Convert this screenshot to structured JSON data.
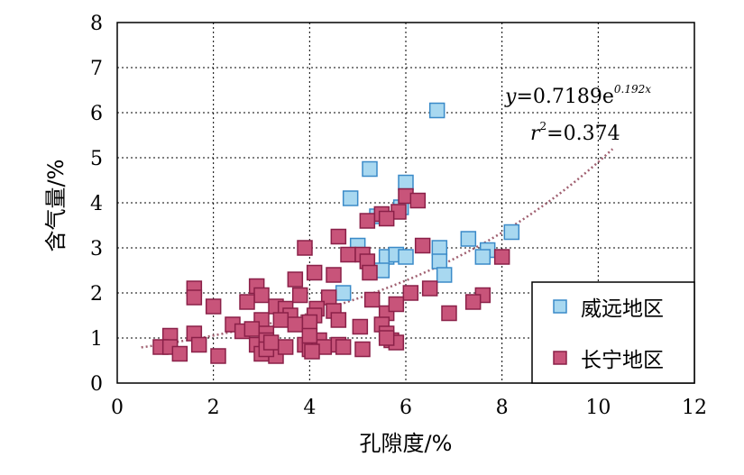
{
  "chart_data": {
    "type": "scatter",
    "xlabel": "孔隙度/%",
    "ylabel": "含气量/%",
    "xlim": [
      0,
      12
    ],
    "ylim": [
      0,
      8
    ],
    "xticks": [
      "0",
      "2",
      "4",
      "6",
      "8",
      "10",
      "12"
    ],
    "yticks": [
      "0",
      "1",
      "2",
      "3",
      "4",
      "5",
      "6",
      "7",
      "8"
    ],
    "grid": "dotted",
    "legend_position": "bottom-right",
    "equation": {
      "y_label": "y",
      "y_rhs": "=0.7189e",
      "y_exp": "0.192x",
      "r_label": "r",
      "r_sup": "2",
      "r_rhs": "=0.374"
    },
    "trendline": {
      "type": "exponential",
      "a": 0.7189,
      "b": 0.192,
      "x_range": [
        0.5,
        10.3
      ],
      "color": "#a06070"
    },
    "series": [
      {
        "name": "威远地区",
        "fill": "#a8d8f0",
        "stroke": "#3a8ac8",
        "points": [
          [
            6.65,
            6.05
          ],
          [
            5.25,
            4.75
          ],
          [
            6.0,
            4.45
          ],
          [
            4.85,
            4.1
          ],
          [
            5.9,
            3.9
          ],
          [
            5.4,
            3.7
          ],
          [
            5.0,
            3.05
          ],
          [
            6.7,
            3.0
          ],
          [
            7.3,
            3.2
          ],
          [
            8.2,
            3.35
          ],
          [
            7.7,
            2.95
          ],
          [
            7.6,
            2.8
          ],
          [
            5.6,
            2.8
          ],
          [
            5.8,
            2.85
          ],
          [
            6.0,
            2.8
          ],
          [
            6.7,
            2.7
          ],
          [
            6.8,
            2.4
          ],
          [
            5.5,
            2.5
          ],
          [
            4.7,
            2.0
          ]
        ]
      },
      {
        "name": "长宁地区",
        "fill": "#c8547a",
        "stroke": "#8a2048",
        "points": [
          [
            6.0,
            4.15
          ],
          [
            6.25,
            4.05
          ],
          [
            5.85,
            3.8
          ],
          [
            5.5,
            3.75
          ],
          [
            5.6,
            3.65
          ],
          [
            5.2,
            3.6
          ],
          [
            4.6,
            3.25
          ],
          [
            6.35,
            3.05
          ],
          [
            3.9,
            3.0
          ],
          [
            4.8,
            2.85
          ],
          [
            5.1,
            2.85
          ],
          [
            5.2,
            2.7
          ],
          [
            8.0,
            2.8
          ],
          [
            4.1,
            2.45
          ],
          [
            4.5,
            2.4
          ],
          [
            5.25,
            2.45
          ],
          [
            3.7,
            2.3
          ],
          [
            6.5,
            2.1
          ],
          [
            6.1,
            2.0
          ],
          [
            7.6,
            1.95
          ],
          [
            7.4,
            1.8
          ],
          [
            6.9,
            1.55
          ],
          [
            1.6,
            2.1
          ],
          [
            1.6,
            1.9
          ],
          [
            2.0,
            1.7
          ],
          [
            2.9,
            2.15
          ],
          [
            3.0,
            1.95
          ],
          [
            2.7,
            1.8
          ],
          [
            3.3,
            1.7
          ],
          [
            3.5,
            1.65
          ],
          [
            3.8,
            1.95
          ],
          [
            4.4,
            1.9
          ],
          [
            4.15,
            1.65
          ],
          [
            4.5,
            1.6
          ],
          [
            5.3,
            1.85
          ],
          [
            5.6,
            1.55
          ],
          [
            5.8,
            1.75
          ],
          [
            3.6,
            1.5
          ],
          [
            3.0,
            1.4
          ],
          [
            3.4,
            1.4
          ],
          [
            4.1,
            1.5
          ],
          [
            2.4,
            1.3
          ],
          [
            2.6,
            1.15
          ],
          [
            2.8,
            1.2
          ],
          [
            3.1,
            1.1
          ],
          [
            4.0,
            1.35
          ],
          [
            3.7,
            1.3
          ],
          [
            4.6,
            1.4
          ],
          [
            5.05,
            1.25
          ],
          [
            5.5,
            1.3
          ],
          [
            5.6,
            1.1
          ],
          [
            1.1,
            1.05
          ],
          [
            1.6,
            1.1
          ],
          [
            0.9,
            0.8
          ],
          [
            1.1,
            0.8
          ],
          [
            1.7,
            0.85
          ],
          [
            1.3,
            0.65
          ],
          [
            2.1,
            0.6
          ],
          [
            2.9,
            0.85
          ],
          [
            3.1,
            0.95
          ],
          [
            3.0,
            0.65
          ],
          [
            3.3,
            0.6
          ],
          [
            3.5,
            0.8
          ],
          [
            3.1,
            0.75
          ],
          [
            3.2,
            0.9
          ],
          [
            3.9,
            0.85
          ],
          [
            4.0,
            0.75
          ],
          [
            4.2,
            0.95
          ],
          [
            4.3,
            0.8
          ],
          [
            4.6,
            0.85
          ],
          [
            4.7,
            0.8
          ],
          [
            4.05,
            0.7
          ],
          [
            5.1,
            0.75
          ],
          [
            5.7,
            0.95
          ],
          [
            5.8,
            0.9
          ],
          [
            5.6,
            1.0
          ],
          [
            4.0,
            1.05
          ]
        ]
      }
    ]
  }
}
